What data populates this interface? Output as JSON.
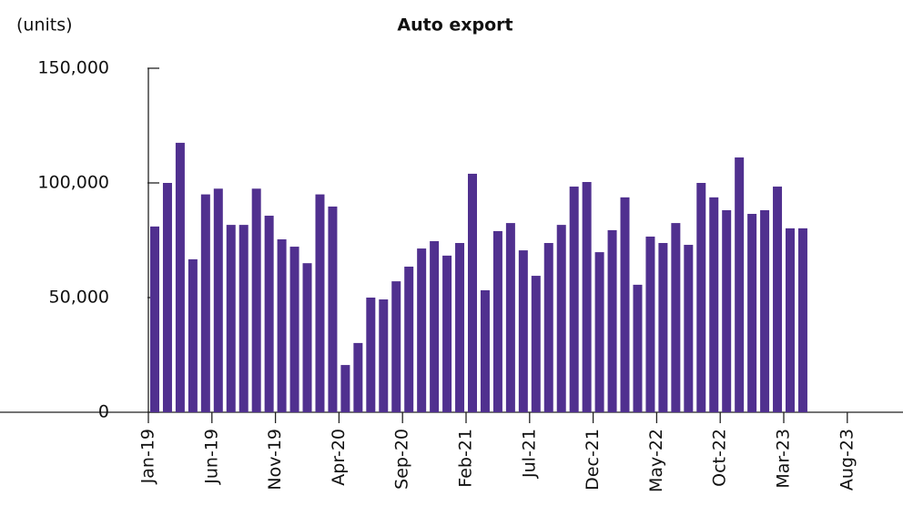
{
  "chart_data": {
    "type": "bar",
    "title": "Auto export",
    "y_axis_label": "(units)",
    "categories": [
      "Jan-19",
      null,
      null,
      null,
      null,
      "Jun-19",
      null,
      null,
      null,
      null,
      "Nov-19",
      null,
      null,
      null,
      null,
      "Apr-20",
      null,
      null,
      null,
      null,
      "Sep-20",
      null,
      null,
      null,
      null,
      "Feb-21",
      null,
      null,
      null,
      null,
      "Jul-21",
      null,
      null,
      null,
      null,
      "Dec-21",
      null,
      null,
      null,
      null,
      "May-22",
      null,
      null,
      null,
      null,
      "Oct-22",
      null,
      null,
      null,
      null,
      "Mar-23",
      null,
      null,
      null,
      null,
      "Aug-23"
    ],
    "values": [
      81000,
      100000,
      117500,
      66700,
      95000,
      97500,
      81700,
      81700,
      97500,
      85700,
      75400,
      72200,
      65000,
      95000,
      89700,
      20600,
      30200,
      50000,
      49200,
      57100,
      63500,
      71400,
      74600,
      68300,
      73800,
      104000,
      53200,
      79000,
      82500,
      70600,
      59500,
      73800,
      81700,
      98400,
      100400,
      69800,
      79400,
      93700,
      55600,
      76600,
      73800,
      82500,
      73000,
      100000,
      93700,
      88100,
      111100,
      86500,
      88100,
      98400,
      80200,
      80200,
      null,
      null,
      null,
      null
    ],
    "color": "#50308f",
    "ylim": [
      0,
      150000
    ],
    "yticks": [
      0,
      {
        "value": 50000,
        "label": "50,000"
      },
      {
        "value": 100000,
        "label": "100,000"
      },
      {
        "value": 150000,
        "label": "150,000"
      }
    ]
  }
}
